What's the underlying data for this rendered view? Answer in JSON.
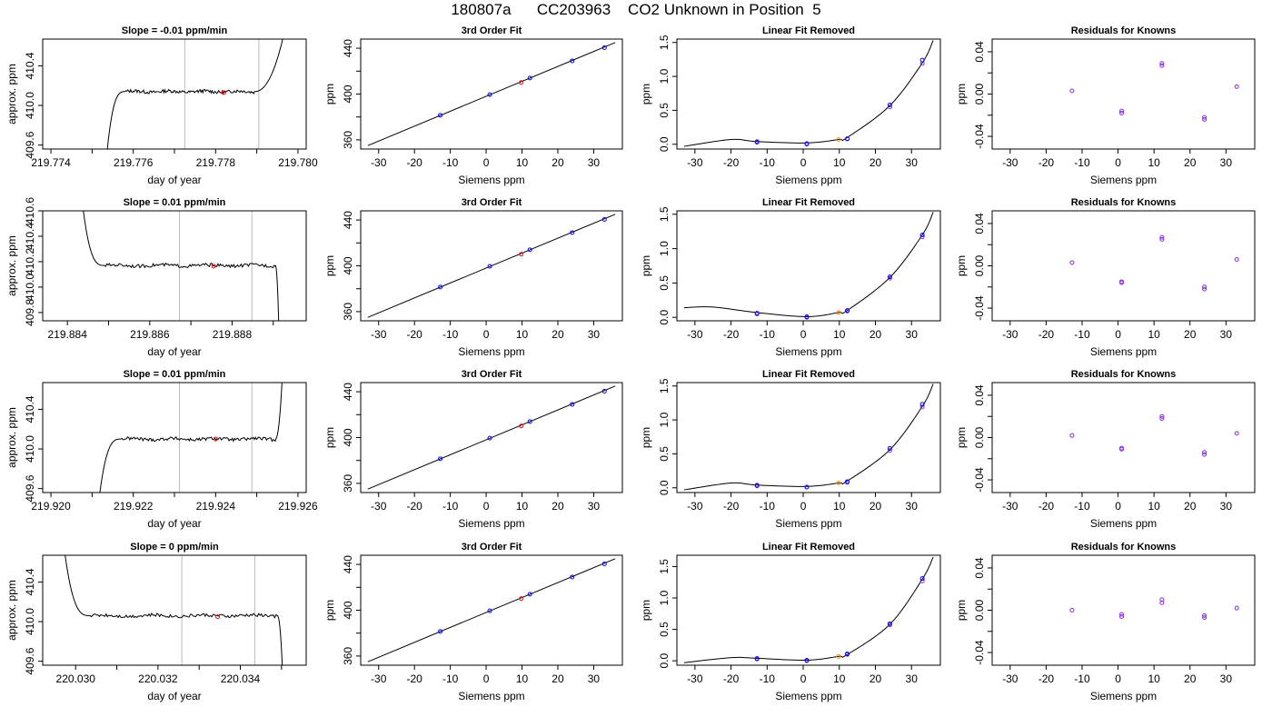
{
  "title": "180807a      CC203963    CO2 Unknown in Position  5",
  "colors": {
    "known": "#0000ff",
    "unknown": "#ff0000",
    "unknown_resid": "#ff8c00",
    "resid": "#8a2be2",
    "line": "#000000",
    "marker": "#bbbbbb"
  },
  "chart_data": [
    {
      "type": "line",
      "row": 0,
      "title": "Slope =  -0.01  ppm/min",
      "xlabel": "day of year",
      "ylabel": "approx. ppm",
      "xlim": [
        219.7738,
        219.7802
      ],
      "ylim": [
        409.56,
        410.67
      ],
      "xticks": [
        219.774,
        219.776,
        219.778,
        219.78
      ],
      "xtick_labels": [
        "219.774",
        "219.776",
        "219.778",
        "219.780"
      ],
      "yticks": [
        409.6,
        410.0,
        410.4
      ],
      "ytick_labels": [
        "409.6",
        "410.0",
        "410.4"
      ],
      "start": 219.7753,
      "flat_start": 219.7758,
      "flat_end": 219.77895,
      "end": 219.7798,
      "level": 410.14,
      "vlines": [
        219.77725,
        219.77905
      ],
      "marker": [
        219.7782,
        410.13
      ]
    },
    {
      "type": "scatter",
      "row": 0,
      "title": "3rd Order Fit",
      "xlabel": "Siemens ppm",
      "ylabel": "ppm",
      "xlim": [
        -35,
        38
      ],
      "ylim": [
        352,
        448
      ],
      "xticks": [
        -30,
        -20,
        -10,
        0,
        10,
        20,
        30
      ],
      "xtick_labels": [
        "-30",
        "-20",
        "-10",
        "0",
        "10",
        "20",
        "30"
      ],
      "yticks": [
        360,
        400,
        440
      ],
      "ytick_labels": [
        "360",
        "400",
        "440"
      ],
      "fit_x": [
        -33,
        36
      ],
      "fit_y": [
        355,
        445
      ],
      "knowns_x": [
        -12.8,
        1,
        12.2,
        24,
        33
      ],
      "knowns_y": [
        381.5,
        399.5,
        414,
        429,
        440.5
      ],
      "unknown": [
        9.8,
        410.1
      ]
    },
    {
      "type": "scatter",
      "row": 0,
      "title": "Linear Fit Removed",
      "xlabel": "Siemens ppm",
      "ylabel": "ppm",
      "xlim": [
        -35,
        38
      ],
      "ylim": [
        -0.07,
        1.55
      ],
      "xticks": [
        -30,
        -20,
        -10,
        0,
        10,
        20,
        30
      ],
      "xtick_labels": [
        "-30",
        "-20",
        "-10",
        "0",
        "10",
        "20",
        "30"
      ],
      "yticks": [
        0,
        0.5,
        1,
        1.5
      ],
      "ytick_labels": [
        "0.0",
        "0.5",
        "1.0",
        "1.5"
      ],
      "curve_x": [
        -33,
        -20,
        -12.8,
        1,
        9.8,
        12.2,
        24,
        33,
        36
      ],
      "curve_y": [
        -0.03,
        0.07,
        0.04,
        0.02,
        0.07,
        0.1,
        0.57,
        1.2,
        1.53
      ],
      "knowns_x": [
        -12.8,
        -12.8,
        1,
        1,
        12.2,
        12.2,
        24,
        24,
        33,
        33
      ],
      "knowns_y": [
        0.04,
        0.03,
        0.0,
        0.01,
        0.08,
        0.08,
        0.55,
        0.58,
        1.19,
        1.24
      ],
      "unknown": [
        9.8,
        0.07
      ]
    },
    {
      "type": "scatter",
      "row": 0,
      "title": "Residuals for Knowns",
      "xlabel": "Siemens ppm",
      "ylabel": "ppm",
      "xlim": [
        -35,
        38
      ],
      "ylim": [
        -0.052,
        0.052
      ],
      "xticks": [
        -30,
        -20,
        -10,
        0,
        10,
        20,
        30
      ],
      "xtick_labels": [
        "-30",
        "-20",
        "-10",
        "0",
        "10",
        "20",
        "30"
      ],
      "yticks": [
        -0.04,
        0,
        0.04
      ],
      "ytick_labels": [
        "-0.04",
        "0.00",
        "0.04"
      ],
      "x": [
        -12.8,
        1,
        1,
        12.2,
        12.2,
        24,
        24,
        33
      ],
      "y": [
        0.003,
        -0.016,
        -0.018,
        0.029,
        0.027,
        -0.022,
        -0.024,
        0.007
      ]
    },
    {
      "type": "line",
      "row": 1,
      "title": "Slope =  0.01  ppm/min",
      "xlabel": "day of year",
      "ylabel": "approx. ppm",
      "xlim": [
        219.8834,
        219.8898
      ],
      "ylim": [
        409.735,
        410.6
      ],
      "xticks": [
        219.884,
        219.886,
        219.888
      ],
      "xtick_labels": [
        "219.884",
        "219.886",
        "219.888"
      ],
      "yticks": [
        409.8,
        410.0,
        410.2,
        410.4,
        410.6
      ],
      "ytick_labels": [
        "409.8",
        "410.0",
        "410.2",
        "410.4",
        "410.6"
      ],
      "start": 219.8843,
      "flat_start": 219.8849,
      "flat_end": 219.88905,
      "end": 219.88915,
      "level": 410.17,
      "vlines": [
        219.88672,
        219.88848
      ],
      "marker": [
        219.88755,
        410.165
      ]
    },
    {
      "type": "scatter",
      "row": 1,
      "title": "3rd Order Fit",
      "xlabel": "Siemens ppm",
      "ylabel": "ppm",
      "xlim": [
        -35,
        38
      ],
      "ylim": [
        352,
        448
      ],
      "xticks": [
        -30,
        -20,
        -10,
        0,
        10,
        20,
        30
      ],
      "xtick_labels": [
        "-30",
        "-20",
        "-10",
        "0",
        "10",
        "20",
        "30"
      ],
      "yticks": [
        360,
        400,
        440
      ],
      "ytick_labels": [
        "360",
        "400",
        "440"
      ],
      "fit_x": [
        -33,
        36
      ],
      "fit_y": [
        355,
        445
      ],
      "knowns_x": [
        -12.8,
        1,
        12.2,
        24,
        33
      ],
      "knowns_y": [
        381.5,
        399.5,
        414,
        429,
        440.5
      ],
      "unknown": [
        9.8,
        410.1
      ]
    },
    {
      "type": "scatter",
      "row": 1,
      "title": "Linear Fit Removed",
      "xlabel": "Siemens ppm",
      "ylabel": "ppm",
      "xlim": [
        -35,
        38
      ],
      "ylim": [
        -0.05,
        1.55
      ],
      "xticks": [
        -30,
        -20,
        -10,
        0,
        10,
        20,
        30
      ],
      "xtick_labels": [
        "-30",
        "-20",
        "-10",
        "0",
        "10",
        "20",
        "30"
      ],
      "yticks": [
        0,
        0.5,
        1,
        1.5
      ],
      "ytick_labels": [
        "0.0",
        "0.5",
        "1.0",
        "1.5"
      ],
      "curve_x": [
        -33,
        -25,
        -12.8,
        1,
        9.8,
        12.2,
        24,
        33,
        36
      ],
      "curve_y": [
        0.14,
        0.15,
        0.07,
        0.01,
        0.07,
        0.1,
        0.58,
        1.2,
        1.53
      ],
      "knowns_x": [
        -12.8,
        -12.8,
        1,
        1,
        12.2,
        12.2,
        24,
        24,
        33,
        33
      ],
      "knowns_y": [
        0.05,
        0.06,
        0.0,
        0.01,
        0.09,
        0.1,
        0.57,
        0.59,
        1.17,
        1.2
      ],
      "unknown": [
        9.8,
        0.07
      ]
    },
    {
      "type": "scatter",
      "row": 1,
      "title": "Residuals for Knowns",
      "xlabel": "Siemens ppm",
      "ylabel": "ppm",
      "xlim": [
        -35,
        38
      ],
      "ylim": [
        -0.052,
        0.052
      ],
      "xticks": [
        -30,
        -20,
        -10,
        0,
        10,
        20,
        30
      ],
      "xtick_labels": [
        "-30",
        "-20",
        "-10",
        "0",
        "10",
        "20",
        "30"
      ],
      "yticks": [
        -0.04,
        0,
        0.04
      ],
      "ytick_labels": [
        "-0.04",
        "0.00",
        "0.04"
      ],
      "x": [
        -12.8,
        1,
        1,
        12.2,
        12.2,
        24,
        24,
        33
      ],
      "y": [
        0.003,
        -0.015,
        -0.016,
        0.025,
        0.027,
        -0.02,
        -0.022,
        0.006
      ]
    },
    {
      "type": "line",
      "row": 2,
      "title": "Slope =  0.01  ppm/min",
      "xlabel": "day of year",
      "ylabel": "approx. ppm",
      "xlim": [
        219.9198,
        219.9262
      ],
      "ylim": [
        409.56,
        410.67
      ],
      "xticks": [
        219.92,
        219.922,
        219.924,
        219.926
      ],
      "xtick_labels": [
        "219.920",
        "219.922",
        "219.924",
        "219.926"
      ],
      "yticks": [
        409.6,
        410.0,
        410.4
      ],
      "ytick_labels": [
        "409.6",
        "410.0",
        "410.4"
      ],
      "start": 219.9211,
      "flat_start": 219.9217,
      "flat_end": 219.92545,
      "end": 219.92565,
      "level": 410.1,
      "vlines": [
        219.92312,
        219.92488
      ],
      "marker": [
        219.924,
        410.1
      ]
    },
    {
      "type": "scatter",
      "row": 2,
      "title": "3rd Order Fit",
      "xlabel": "Siemens ppm",
      "ylabel": "ppm",
      "xlim": [
        -35,
        38
      ],
      "ylim": [
        352,
        448
      ],
      "xticks": [
        -30,
        -20,
        -10,
        0,
        10,
        20,
        30
      ],
      "xtick_labels": [
        "-30",
        "-20",
        "-10",
        "0",
        "10",
        "20",
        "30"
      ],
      "yticks": [
        360,
        400,
        440
      ],
      "ytick_labels": [
        "360",
        "400",
        "440"
      ],
      "fit_x": [
        -33,
        36
      ],
      "fit_y": [
        355,
        445
      ],
      "knowns_x": [
        -12.8,
        1,
        12.2,
        24,
        33
      ],
      "knowns_y": [
        381.5,
        399.5,
        414,
        429,
        440.5
      ],
      "unknown": [
        9.8,
        410.1
      ]
    },
    {
      "type": "scatter",
      "row": 2,
      "title": "Linear Fit Removed",
      "xlabel": "Siemens ppm",
      "ylabel": "ppm",
      "xlim": [
        -35,
        38
      ],
      "ylim": [
        -0.07,
        1.55
      ],
      "xticks": [
        -30,
        -20,
        -10,
        0,
        10,
        20,
        30
      ],
      "xtick_labels": [
        "-30",
        "-20",
        "-10",
        "0",
        "10",
        "20",
        "30"
      ],
      "yticks": [
        0,
        0.5,
        1,
        1.5
      ],
      "ytick_labels": [
        "0.0",
        "0.5",
        "1.0",
        "1.5"
      ],
      "curve_x": [
        -33,
        -20,
        -12.8,
        1,
        9.8,
        12.2,
        24,
        33,
        36
      ],
      "curve_y": [
        -0.03,
        0.07,
        0.04,
        0.02,
        0.07,
        0.1,
        0.56,
        1.2,
        1.53
      ],
      "knowns_x": [
        -12.8,
        -12.8,
        1,
        1,
        12.2,
        12.2,
        24,
        24,
        33,
        33
      ],
      "knowns_y": [
        0.04,
        0.03,
        0.01,
        0.01,
        0.08,
        0.09,
        0.55,
        0.58,
        1.19,
        1.23
      ],
      "unknown": [
        9.8,
        0.07
      ]
    },
    {
      "type": "scatter",
      "row": 2,
      "title": "Residuals for Knowns",
      "xlabel": "Siemens ppm",
      "ylabel": "ppm",
      "xlim": [
        -35,
        38
      ],
      "ylim": [
        -0.052,
        0.052
      ],
      "xticks": [
        -30,
        -20,
        -10,
        0,
        10,
        20,
        30
      ],
      "xtick_labels": [
        "-30",
        "-20",
        "-10",
        "0",
        "10",
        "20",
        "30"
      ],
      "yticks": [
        -0.04,
        0,
        0.04
      ],
      "ytick_labels": [
        "-0.04",
        "0.00",
        "0.04"
      ],
      "x": [
        -12.8,
        1,
        1,
        12.2,
        12.2,
        24,
        24,
        33
      ],
      "y": [
        0.002,
        -0.01,
        -0.011,
        0.018,
        0.02,
        -0.014,
        -0.016,
        0.004
      ]
    },
    {
      "type": "line",
      "row": 3,
      "title": "Slope =  0  ppm/min",
      "xlabel": "day of year",
      "ylabel": "approx. ppm",
      "xlim": [
        220.0292,
        220.0356
      ],
      "ylim": [
        409.56,
        410.67
      ],
      "xticks": [
        220.03,
        220.032,
        220.034
      ],
      "xtick_labels": [
        "220.030",
        "220.032",
        "220.034"
      ],
      "yticks": [
        409.6,
        410.0,
        410.4
      ],
      "ytick_labels": [
        "409.6",
        "410.0",
        "410.4"
      ],
      "start": 220.02965,
      "flat_start": 220.03035,
      "flat_end": 220.0349,
      "end": 220.03505,
      "level": 410.06,
      "vlines": [
        220.03258,
        220.03435
      ],
      "marker": [
        220.03345,
        410.05
      ]
    },
    {
      "type": "scatter",
      "row": 3,
      "title": "3rd Order Fit",
      "xlabel": "Siemens ppm",
      "ylabel": "ppm",
      "xlim": [
        -35,
        38
      ],
      "ylim": [
        352,
        448
      ],
      "xticks": [
        -30,
        -20,
        -10,
        0,
        10,
        20,
        30
      ],
      "xtick_labels": [
        "-30",
        "-20",
        "-10",
        "0",
        "10",
        "20",
        "30"
      ],
      "yticks": [
        360,
        400,
        440
      ],
      "ytick_labels": [
        "360",
        "400",
        "440"
      ],
      "fit_x": [
        -33,
        36
      ],
      "fit_y": [
        355,
        445
      ],
      "knowns_x": [
        -12.8,
        1,
        12.2,
        24,
        33
      ],
      "knowns_y": [
        381.5,
        399.5,
        414,
        429,
        440.5
      ],
      "unknown": [
        9.8,
        410.1
      ]
    },
    {
      "type": "scatter",
      "row": 3,
      "title": "Linear Fit Removed",
      "xlabel": "Siemens ppm",
      "ylabel": "ppm",
      "xlim": [
        -35,
        38
      ],
      "ylim": [
        -0.07,
        1.68
      ],
      "xticks": [
        -30,
        -20,
        -10,
        0,
        10,
        20,
        30
      ],
      "xtick_labels": [
        "-30",
        "-20",
        "-10",
        "0",
        "10",
        "20",
        "30"
      ],
      "yticks": [
        0,
        0.5,
        1,
        1.5
      ],
      "ytick_labels": [
        "0.0",
        "0.5",
        "1.0",
        "1.5"
      ],
      "curve_x": [
        -33,
        -20,
        -12.8,
        1,
        9.8,
        12.2,
        24,
        33,
        36
      ],
      "curve_y": [
        -0.03,
        0.05,
        0.04,
        0.01,
        0.07,
        0.1,
        0.58,
        1.3,
        1.65
      ],
      "knowns_x": [
        -12.8,
        -12.8,
        1,
        1,
        12.2,
        12.2,
        24,
        24,
        33,
        33
      ],
      "knowns_y": [
        0.04,
        0.03,
        0.0,
        0.01,
        0.1,
        0.11,
        0.57,
        0.59,
        1.27,
        1.31
      ],
      "unknown": [
        9.8,
        0.07
      ]
    },
    {
      "type": "scatter",
      "row": 3,
      "title": "Residuals for Knowns",
      "xlabel": "Siemens ppm",
      "ylabel": "ppm",
      "xlim": [
        -35,
        38
      ],
      "ylim": [
        -0.052,
        0.052
      ],
      "xticks": [
        -30,
        -20,
        -10,
        0,
        10,
        20,
        30
      ],
      "xtick_labels": [
        "-30",
        "-20",
        "-10",
        "0",
        "10",
        "20",
        "30"
      ],
      "yticks": [
        -0.04,
        0,
        0.04
      ],
      "ytick_labels": [
        "-0.04",
        "0.00",
        "0.04"
      ],
      "x": [
        -12.8,
        1,
        1,
        12.2,
        12.2,
        24,
        24,
        33
      ],
      "y": [
        0.0,
        -0.004,
        -0.006,
        0.01,
        0.007,
        -0.005,
        -0.007,
        0.002
      ]
    }
  ]
}
